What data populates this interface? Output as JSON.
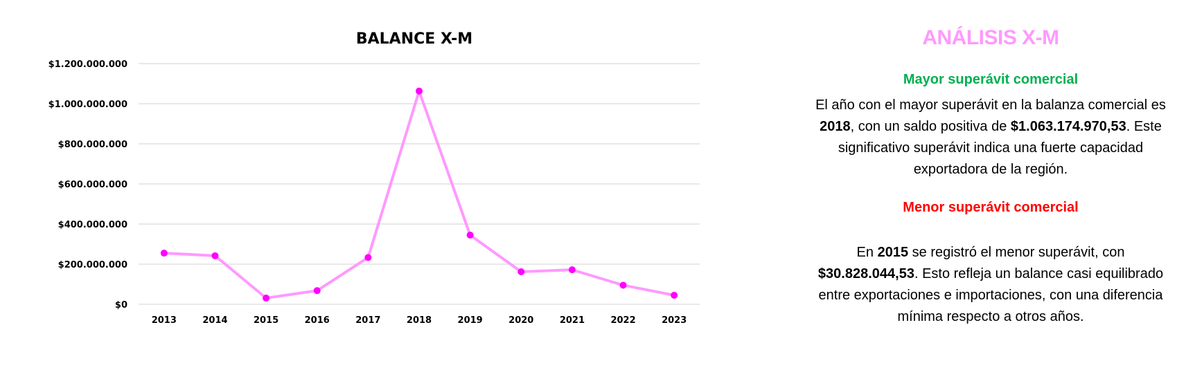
{
  "chart_data": {
    "type": "line",
    "title": "BALANCE X-M",
    "categories": [
      "2013",
      "2014",
      "2015",
      "2016",
      "2017",
      "2018",
      "2019",
      "2020",
      "2021",
      "2022",
      "2023"
    ],
    "series": [
      {
        "values": [
          255000000,
          242000000,
          30828044.53,
          68000000,
          233000000,
          1063174970.53,
          345000000,
          162000000,
          172000000,
          95000000,
          45000000
        ],
        "color": "#ff99ff",
        "marker_color": "#ff00ff"
      }
    ],
    "yticks": [
      {
        "value": 0,
        "label": "$0"
      },
      {
        "value": 200000000,
        "label": "$200.000.000"
      },
      {
        "value": 400000000,
        "label": "$400.000.000"
      },
      {
        "value": 600000000,
        "label": "$600.000.000"
      },
      {
        "value": 800000000,
        "label": "$800.000.000"
      },
      {
        "value": 1000000000,
        "label": "$1.000.000.000"
      },
      {
        "value": 1200000000,
        "label": "$1.200.000.000"
      }
    ],
    "ylim": [
      0,
      1200000000
    ],
    "grid": true,
    "xlabel": "",
    "ylabel": ""
  },
  "analysis": {
    "title": "ANÁLISIS X-M",
    "title_color": "#ff99ff",
    "max_section": {
      "heading": "Mayor superávit comercial",
      "heading_color": "#00b050",
      "text_1": "El año con el mayor superávit en la balanza comercial es ",
      "year": "2018",
      "text_2": ", con un saldo positiva de ",
      "amount": "$1.063.174.970,53",
      "text_3": ". Este significativo superávit indica una fuerte capacidad exportadora de la región."
    },
    "min_section": {
      "heading": "Menor superávit comercial",
      "heading_color": "#ff0000",
      "text_1": "En ",
      "year": "2015",
      "text_2": " se registró el menor superávit, con ",
      "amount": "$30.828.044,53",
      "text_3": ". Esto refleja un balance casi equilibrado entre exportaciones e importaciones, con una diferencia mínima respecto a otros años."
    }
  }
}
